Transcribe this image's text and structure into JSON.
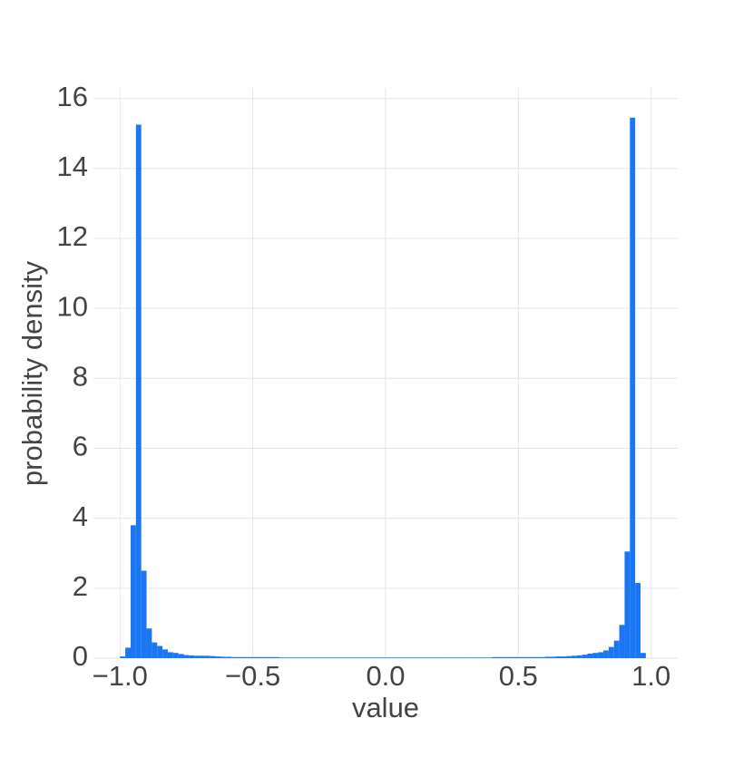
{
  "chart_data": {
    "type": "histogram",
    "xlabel": "value",
    "ylabel": "probability density",
    "color": "#1a76f2",
    "grid": true,
    "bins": [
      -1,
      -0.98,
      -0.96,
      -0.94,
      -0.92,
      -0.9,
      -0.88,
      -0.86,
      -0.84,
      -0.82,
      -0.8,
      -0.78,
      -0.76,
      -0.74,
      -0.72,
      -0.7,
      -0.68,
      -0.66,
      -0.64,
      -0.62,
      -0.6,
      -0.58,
      -0.56,
      -0.54,
      -0.52,
      -0.5,
      -0.48,
      -0.46,
      -0.44,
      -0.42,
      -0.4,
      -0.38,
      -0.36,
      -0.34,
      -0.32,
      -0.3,
      -0.28,
      -0.26,
      -0.24,
      -0.22,
      -0.2,
      -0.18,
      -0.16,
      -0.14,
      -0.12,
      -0.1,
      -0.08,
      -0.06,
      -0.04,
      -0.02,
      0,
      0.02,
      0.04,
      0.06,
      0.08,
      0.1,
      0.12,
      0.14,
      0.16,
      0.18,
      0.2,
      0.22,
      0.24,
      0.26,
      0.28,
      0.3,
      0.32,
      0.34,
      0.36,
      0.38,
      0.4,
      0.42,
      0.44,
      0.46,
      0.48,
      0.5,
      0.52,
      0.54,
      0.56,
      0.58,
      0.6,
      0.62,
      0.64,
      0.66,
      0.68,
      0.7,
      0.72,
      0.74,
      0.76,
      0.78,
      0.8,
      0.82,
      0.84,
      0.86,
      0.88,
      0.9,
      0.92,
      0.94,
      0.96,
      0.98,
      1
    ],
    "counts": [
      0.05,
      0.3,
      3.8,
      15.25,
      2.5,
      0.85,
      0.45,
      0.35,
      0.25,
      0.17,
      0.15,
      0.12,
      0.09,
      0.08,
      0.07,
      0.07,
      0.07,
      0.06,
      0.05,
      0.04,
      0.04,
      0.03,
      0.03,
      0.03,
      0.03,
      0.03,
      0.03,
      0.03,
      0.03,
      0.03,
      0.02,
      0.02,
      0.02,
      0.02,
      0.02,
      0.02,
      0.02,
      0.02,
      0.02,
      0.02,
      0.02,
      0.02,
      0.02,
      0.02,
      0.02,
      0.02,
      0.02,
      0.02,
      0.02,
      0.02,
      0.02,
      0.02,
      0.02,
      0.02,
      0.02,
      0.02,
      0.02,
      0.02,
      0.02,
      0.02,
      0.02,
      0.02,
      0.02,
      0.02,
      0.02,
      0.02,
      0.02,
      0.02,
      0.02,
      0.02,
      0.03,
      0.03,
      0.03,
      0.03,
      0.03,
      0.03,
      0.03,
      0.03,
      0.03,
      0.03,
      0.04,
      0.04,
      0.05,
      0.05,
      0.06,
      0.07,
      0.08,
      0.1,
      0.13,
      0.15,
      0.17,
      0.22,
      0.32,
      0.5,
      0.95,
      3.05,
      15.45,
      2.15,
      0.15,
      0
    ],
    "xlim": [
      -1.1,
      1.1
    ],
    "ylim": [
      0,
      16.3
    ],
    "xticks": [
      {
        "value": -1,
        "label": "−1.0"
      },
      {
        "value": -0.5,
        "label": "−0.5"
      },
      {
        "value": 0,
        "label": "0.0"
      },
      {
        "value": 0.5,
        "label": "0.5"
      },
      {
        "value": 1,
        "label": "1.0"
      }
    ],
    "yticks": [
      0,
      2,
      4,
      6,
      8,
      10,
      12,
      14,
      16
    ]
  }
}
